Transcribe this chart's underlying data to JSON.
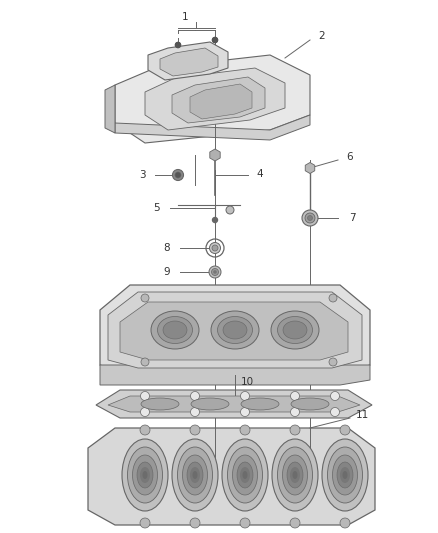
{
  "background_color": "#ffffff",
  "line_color": "#666666",
  "dark_color": "#444444",
  "fill_light": "#e0e0e0",
  "fill_mid": "#c8c8c8",
  "fill_dark": "#aaaaaa",
  "text_color": "#333333",
  "fig_width": 4.38,
  "fig_height": 5.33,
  "dpi": 100,
  "label_fontsize": 7.5
}
